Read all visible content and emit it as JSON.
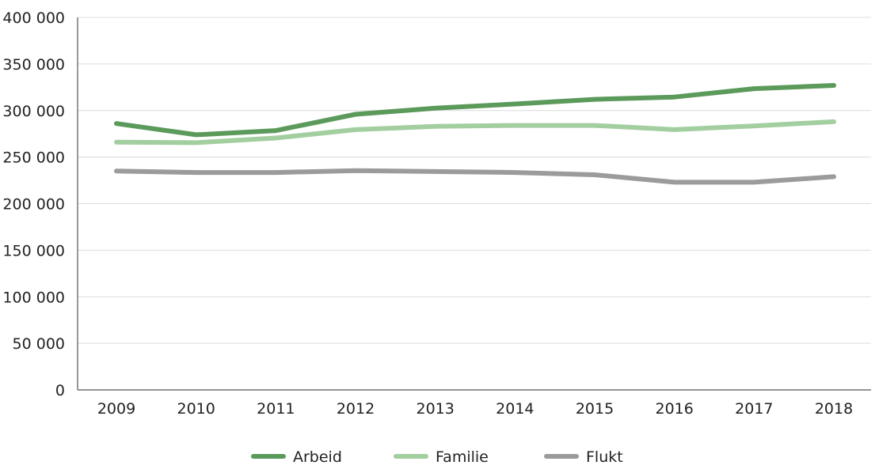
{
  "chart_data": {
    "type": "line",
    "title": "",
    "xlabel": "",
    "ylabel": "",
    "categories": [
      "2009",
      "2010",
      "2011",
      "2012",
      "2013",
      "2014",
      "2015",
      "2016",
      "2017",
      "2018"
    ],
    "ylim": [
      0,
      400000
    ],
    "yticks": [
      0,
      50000,
      100000,
      150000,
      200000,
      250000,
      300000,
      350000,
      400000
    ],
    "ytick_labels": [
      "0",
      "50 000",
      "100 000",
      "150 000",
      "200 000",
      "250 000",
      "300 000",
      "350 000",
      "400 000"
    ],
    "grid": "horizontal",
    "legend_position": "bottom",
    "series": [
      {
        "name": "Arbeid",
        "color": "#5b9a5a",
        "values": [
          286000,
          274000,
          278500,
          296000,
          302500,
          307000,
          312000,
          314500,
          323500,
          327000
        ]
      },
      {
        "name": "Familie",
        "color": "#a3cfa0",
        "values": [
          266000,
          265500,
          270500,
          279500,
          283000,
          284000,
          284000,
          279500,
          283500,
          288000
        ]
      },
      {
        "name": "Flukt",
        "color": "#9b9b9b",
        "values": [
          235000,
          233500,
          233500,
          235500,
          234500,
          233500,
          231000,
          223000,
          223000,
          229000
        ]
      }
    ]
  }
}
